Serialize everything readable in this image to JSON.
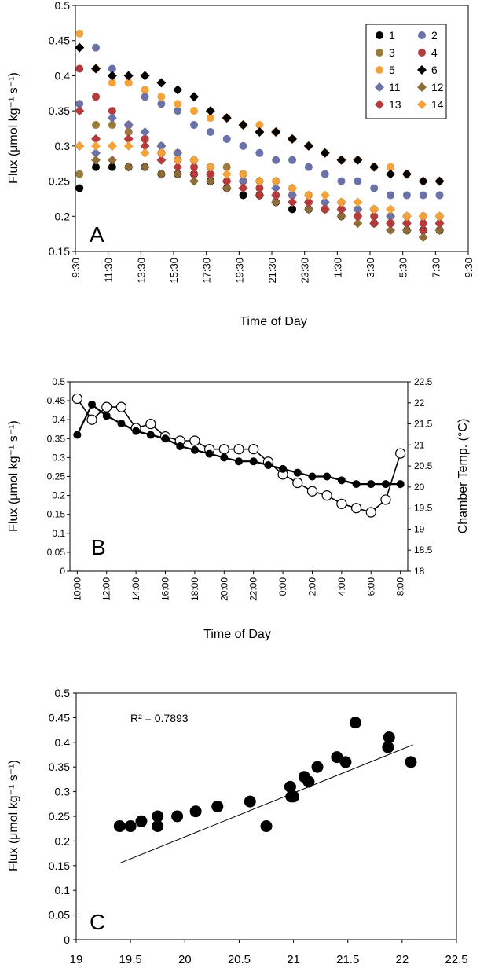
{
  "chart_data": [
    {
      "panel": "A",
      "type": "scatter",
      "ylabel": "Flux (μmol kg⁻¹ s⁻¹)",
      "xlabel": "Time of Day",
      "ylim": [
        0.15,
        0.5
      ],
      "yticks": [
        "0.5",
        "0.45",
        "0.4",
        "0.35",
        "0.3",
        "0.25",
        "0.2",
        "0.15"
      ],
      "xticks": [
        "9:30",
        "11:30",
        "13:30",
        "15:30",
        "17:30",
        "19:30",
        "21:30",
        "23:30",
        "1:30",
        "3:30",
        "5:30",
        "7:30",
        "9:30"
      ],
      "xlim_hours": [
        9.5,
        33.5
      ],
      "x_hours": [
        9.75,
        10.75,
        11.75,
        12.75,
        13.75,
        14.75,
        15.75,
        16.75,
        17.75,
        18.75,
        19.75,
        20.75,
        21.75,
        22.75,
        23.75,
        24.75,
        25.75,
        26.75,
        27.75,
        28.75,
        29.75,
        30.75,
        31.75
      ],
      "legend": [
        "1",
        "2",
        "3",
        "4",
        "5",
        "6",
        "11",
        "12",
        "13",
        "14"
      ],
      "series": [
        {
          "name": "1",
          "color": "#000000",
          "marker": "circle",
          "values": [
            0.24,
            0.27,
            0.27,
            0.27,
            0.27,
            0.26,
            0.26,
            0.26,
            0.25,
            0.24,
            0.23,
            0.23,
            0.22,
            0.21,
            0.21,
            0.21,
            0.2,
            0.2,
            0.19,
            0.19,
            0.18,
            0.18,
            0.18
          ]
        },
        {
          "name": "2",
          "color": "#6b72a8",
          "marker": "circle",
          "values": [
            0.36,
            0.44,
            0.41,
            0.39,
            0.37,
            0.36,
            0.35,
            0.33,
            0.32,
            0.31,
            0.3,
            0.29,
            0.28,
            0.28,
            0.27,
            0.26,
            0.25,
            0.25,
            0.24,
            0.23,
            0.23,
            0.23,
            0.23
          ]
        },
        {
          "name": "3",
          "color": "#9a7b3c",
          "marker": "circle",
          "values": [
            0.26,
            0.33,
            0.33,
            0.32,
            0.31,
            0.3,
            0.29,
            0.28,
            0.27,
            0.27,
            0.26,
            0.25,
            0.25,
            0.24,
            0.23,
            0.22,
            0.22,
            0.21,
            0.21,
            0.2,
            0.2,
            0.2,
            0.2
          ]
        },
        {
          "name": "4",
          "color": "#b33b3b",
          "marker": "circle",
          "values": [
            0.41,
            0.37,
            0.35,
            0.33,
            0.31,
            0.29,
            0.28,
            0.27,
            0.26,
            0.25,
            0.25,
            0.24,
            0.23,
            0.23,
            0.22,
            0.21,
            0.21,
            0.2,
            0.2,
            0.19,
            0.19,
            0.19,
            0.19
          ]
        },
        {
          "name": "5",
          "color": "#f3a33a",
          "marker": "circle",
          "values": [
            0.46,
            0.41,
            0.39,
            0.39,
            0.38,
            0.37,
            0.36,
            0.35,
            0.34,
            0.34,
            0.33,
            0.33,
            0.32,
            0.31,
            0.3,
            0.29,
            0.28,
            0.28,
            0.27,
            0.27,
            0.26,
            0.25,
            0.25
          ]
        },
        {
          "name": "6",
          "color": "#000000",
          "marker": "diamond",
          "values": [
            0.44,
            0.41,
            0.4,
            0.4,
            0.4,
            0.39,
            0.38,
            0.37,
            0.35,
            0.34,
            0.33,
            0.32,
            0.32,
            0.31,
            0.3,
            0.29,
            0.28,
            0.28,
            0.27,
            0.26,
            0.26,
            0.25,
            0.25
          ]
        },
        {
          "name": "11",
          "color": "#6b72a8",
          "marker": "diamond",
          "values": [
            0.3,
            0.29,
            0.34,
            0.33,
            0.32,
            0.3,
            0.29,
            0.28,
            0.27,
            0.26,
            0.25,
            0.25,
            0.24,
            0.23,
            0.23,
            0.22,
            0.22,
            0.21,
            0.21,
            0.2,
            0.2,
            0.2,
            0.2
          ]
        },
        {
          "name": "12",
          "color": "#8c6d3a",
          "marker": "diamond",
          "values": [
            0.3,
            0.28,
            0.28,
            0.27,
            0.27,
            0.26,
            0.26,
            0.25,
            0.25,
            0.24,
            0.24,
            0.23,
            0.22,
            0.22,
            0.21,
            0.21,
            0.2,
            0.19,
            0.19,
            0.18,
            0.18,
            0.17,
            0.18
          ]
        },
        {
          "name": "13",
          "color": "#b33b3b",
          "marker": "diamond",
          "values": [
            0.35,
            0.31,
            0.3,
            0.31,
            0.3,
            0.28,
            0.27,
            0.26,
            0.26,
            0.25,
            0.24,
            0.23,
            0.23,
            0.22,
            0.22,
            0.21,
            0.21,
            0.2,
            0.19,
            0.19,
            0.19,
            0.18,
            0.19
          ]
        },
        {
          "name": "14",
          "color": "#f3a33a",
          "marker": "diamond",
          "values": [
            0.3,
            0.3,
            0.3,
            0.3,
            0.29,
            0.29,
            0.28,
            0.28,
            0.27,
            0.26,
            0.26,
            0.25,
            0.25,
            0.24,
            0.23,
            0.23,
            0.22,
            0.22,
            0.21,
            0.21,
            0.2,
            0.2,
            0.2
          ]
        }
      ]
    },
    {
      "panel": "B",
      "type": "line",
      "ylabel": "Flux (μmol kg⁻¹ s⁻¹)",
      "y2label": "Chamber Temp. (°C)",
      "xlabel": "Time of Day",
      "ylim": [
        0,
        0.5
      ],
      "y2lim": [
        18,
        22.5
      ],
      "yticks": [
        "0.5",
        "0.45",
        "0.4",
        "0.35",
        "0.3",
        "0.25",
        "0.2",
        "0.15",
        "0.1",
        "0.05",
        "0"
      ],
      "y2ticks": [
        "22.5",
        "22",
        "21.5",
        "21",
        "20.5",
        "20",
        "19.5",
        "19",
        "18.5",
        "18"
      ],
      "xticks": [
        "10:00",
        "12:00",
        "14:00",
        "16:00",
        "18:00",
        "20:00",
        "22:00",
        "0:00",
        "2:00",
        "4:00",
        "6:00",
        "8:00"
      ],
      "xlim_hours": [
        9.5,
        32.5
      ],
      "x_hours": [
        10,
        11,
        12,
        13,
        14,
        15,
        16,
        17,
        18,
        19,
        20,
        21,
        22,
        23,
        24,
        25,
        26,
        27,
        28,
        29,
        30,
        31,
        32
      ],
      "series": [
        {
          "name": "",
          "axis": "left",
          "marker": "filled-circle",
          "values": [
            0.36,
            0.44,
            0.41,
            0.39,
            0.37,
            0.36,
            0.35,
            0.33,
            0.32,
            0.31,
            0.3,
            0.29,
            0.29,
            0.28,
            0.27,
            0.26,
            0.25,
            0.25,
            0.24,
            0.23,
            0.23,
            0.23,
            0.23
          ]
        },
        {
          "name": "",
          "axis": "right",
          "marker": "open-circle",
          "values": [
            22.1,
            21.6,
            21.9,
            21.9,
            21.4,
            21.5,
            21.2,
            21.1,
            21.1,
            20.9,
            20.9,
            20.9,
            20.9,
            20.6,
            20.3,
            20.1,
            19.9,
            19.8,
            19.6,
            19.5,
            19.4,
            19.7,
            20.8
          ]
        }
      ]
    },
    {
      "panel": "C",
      "type": "scatter",
      "ylabel": "Flux (μmol kg⁻¹ s⁻¹)",
      "xlabel": "",
      "xlim": [
        19,
        22.5
      ],
      "ylim": [
        0,
        0.5
      ],
      "xticks": [
        "19",
        "19.5",
        "20",
        "20.5",
        "21",
        "21.5",
        "22",
        "22.5"
      ],
      "yticks": [
        "0.5",
        "0.45",
        "0.4",
        "0.35",
        "0.3",
        "0.25",
        "0.2",
        "0.15",
        "0.1",
        "0.05",
        "0"
      ],
      "annotation": "R² = 0.7893",
      "points": [
        [
          19.4,
          0.23
        ],
        [
          19.5,
          0.23
        ],
        [
          19.6,
          0.24
        ],
        [
          19.75,
          0.25
        ],
        [
          19.75,
          0.23
        ],
        [
          19.93,
          0.25
        ],
        [
          20.1,
          0.26
        ],
        [
          20.3,
          0.27
        ],
        [
          20.6,
          0.28
        ],
        [
          20.75,
          0.23
        ],
        [
          20.97,
          0.31
        ],
        [
          20.98,
          0.29
        ],
        [
          21.0,
          0.29
        ],
        [
          21.1,
          0.33
        ],
        [
          21.14,
          0.32
        ],
        [
          21.22,
          0.35
        ],
        [
          21.4,
          0.37
        ],
        [
          21.48,
          0.36
        ],
        [
          21.57,
          0.44
        ],
        [
          21.87,
          0.39
        ],
        [
          21.88,
          0.41
        ],
        [
          22.08,
          0.36
        ]
      ],
      "trendline": [
        [
          19.4,
          0.155
        ],
        [
          22.1,
          0.395
        ]
      ]
    }
  ],
  "panel_labels": {
    "a": "A",
    "b": "B",
    "c": "C"
  }
}
